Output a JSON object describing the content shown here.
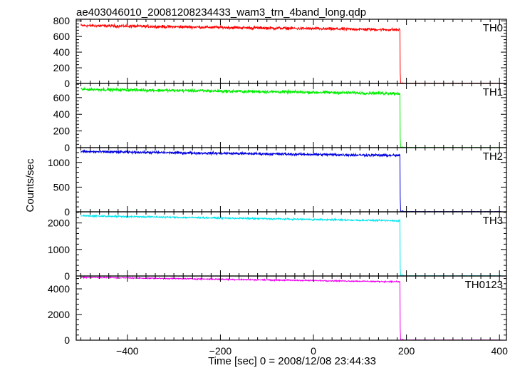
{
  "chart_data": {
    "type": "line",
    "title": "ae403046010_20081208234433_wam3_trn_4band_long.qdp",
    "xlabel": "Time [sec] 0 = 2008/12/08 23:44:33",
    "ylabel": "Counts/sec",
    "xlim": [
      -510,
      415
    ],
    "x_ticks": [
      -400,
      -200,
      0,
      200,
      400
    ],
    "x_tick_labels": [
      "−400",
      "−200",
      "0",
      "200",
      "400"
    ],
    "grid": false,
    "drop_time": 186,
    "panels": [
      {
        "name": "TH0",
        "color": "#ff0000",
        "ylim": [
          0,
          820
        ],
        "y_ticks": [
          0,
          200,
          400,
          600,
          800
        ],
        "y_tick_labels": [
          "0",
          "200",
          "400",
          "600",
          "800"
        ],
        "before": {
          "start": 740,
          "end": 685,
          "noise": 28
        },
        "after_level": 2,
        "spike": 140
      },
      {
        "name": "TH1",
        "color": "#00ee00",
        "ylim": [
          0,
          770
        ],
        "y_ticks": [
          0,
          200,
          400,
          600
        ],
        "y_tick_labels": [
          "0",
          "200",
          "400",
          "600"
        ],
        "before": {
          "start": 700,
          "end": 650,
          "noise": 28
        },
        "after_level": 2,
        "spike": 110
      },
      {
        "name": "TH2",
        "color": "#0000dd",
        "ylim": [
          0,
          1300
        ],
        "y_ticks": [
          0,
          500,
          1000
        ],
        "y_tick_labels": [
          "0",
          "500",
          "1000"
        ],
        "before": {
          "start": 1220,
          "end": 1140,
          "noise": 40
        },
        "after_level": 5,
        "spike": 280
      },
      {
        "name": "TH3",
        "color": "#00e5ee",
        "ylim": [
          0,
          2420
        ],
        "y_ticks": [
          0,
          1000,
          2000
        ],
        "y_tick_labels": [
          "0",
          "1000",
          "2000"
        ],
        "before": {
          "start": 2270,
          "end": 2080,
          "noise": 45
        },
        "after_level": 10,
        "spike": 300
      },
      {
        "name": "TH0123",
        "color": "#ee00ee",
        "ylim": [
          0,
          5000
        ],
        "y_ticks": [
          0,
          2000,
          4000
        ],
        "y_tick_labels": [
          "0",
          "2000",
          "4000"
        ],
        "before": {
          "start": 4900,
          "end": 4550,
          "noise": 70
        },
        "after_level": 15,
        "spike": 900
      }
    ]
  }
}
